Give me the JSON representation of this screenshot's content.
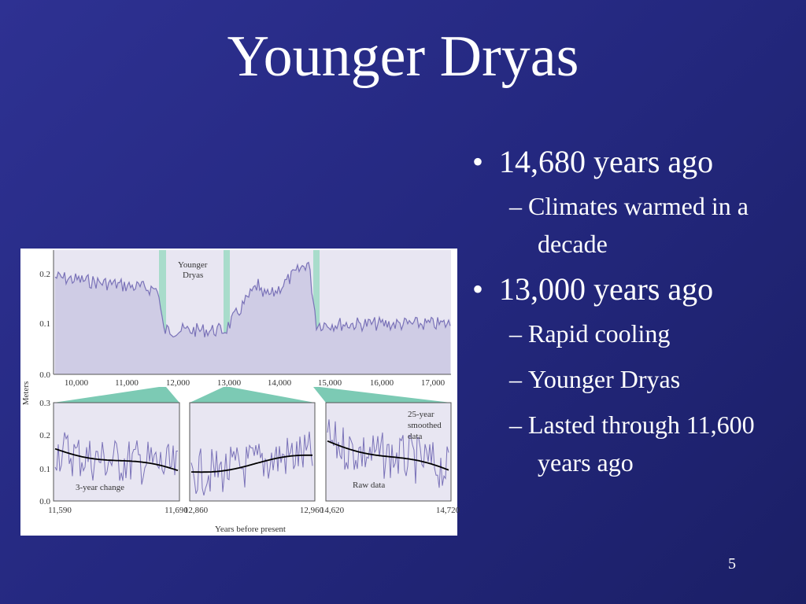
{
  "slide": {
    "title": "Younger Dryas",
    "bullets": [
      {
        "text": "14,680 years ago",
        "sub": [
          "Climates warmed in a decade"
        ]
      },
      {
        "text": "13,000 years ago",
        "sub": [
          "Rapid cooling",
          "Younger Dryas",
          "Lasted through 11,600 years ago"
        ]
      }
    ],
    "page_number": "5"
  },
  "figure": {
    "annotation": [
      "Younger",
      "Dryas"
    ],
    "top_y_ticks": [
      "0.2",
      "0.1",
      "0.0"
    ],
    "top_x_ticks": [
      "10,000",
      "11,000",
      "12,000",
      "13,000",
      "14,000",
      "15,000",
      "16,000",
      "17,000"
    ],
    "bottom_y_ticks": [
      "0.3",
      "0.2",
      "0.1",
      "0.0"
    ],
    "panel_x_ticks": [
      [
        "11,590",
        "11,690"
      ],
      [
        "12,860",
        "12,960"
      ],
      [
        "14,620",
        "14,720"
      ]
    ],
    "y_label": "Meters",
    "x_label": "Years before present",
    "change_label": "3-year change",
    "raw_label": "Raw data",
    "smoothed_label": [
      "25-year",
      "smoothed",
      "data"
    ]
  }
}
